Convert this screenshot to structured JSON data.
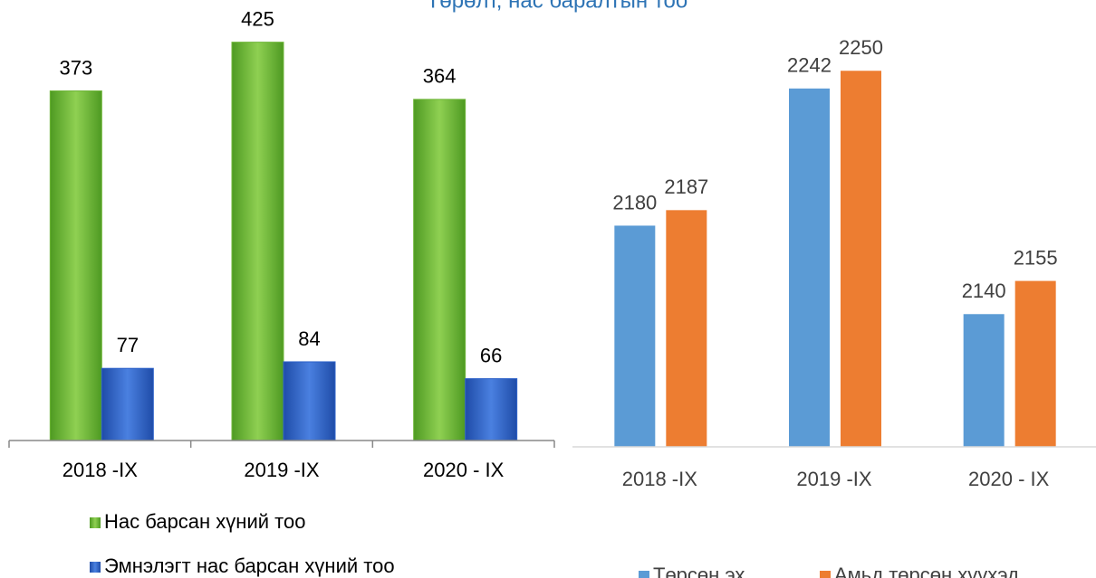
{
  "title": "Төрөлт, нас баралтын тоо",
  "chart_data": [
    {
      "type": "bar",
      "categories": [
        "2018  -IX",
        "2019  -IX",
        "2020  - IX"
      ],
      "series": [
        {
          "name": "Нас барсан хүний тоо",
          "color": "#6fb63a",
          "values": [
            373,
            425,
            364
          ]
        },
        {
          "name": "Эмнэлэгт нас барсан хүний тоо",
          "color": "#2f63c9",
          "values": [
            77,
            84,
            66
          ]
        }
      ],
      "ylim": [
        0,
        470
      ],
      "legend": "bottom"
    },
    {
      "type": "bar",
      "categories": [
        "2018 -IX",
        "2019  -IX",
        "2020  - IX"
      ],
      "series": [
        {
          "name": "Төрсөн эх",
          "color": "#5b9bd5",
          "values": [
            2180,
            2242,
            2140
          ]
        },
        {
          "name": "Амьд төрсөн хүүхэд",
          "color": "#ed7d31",
          "values": [
            2187,
            2250,
            2155
          ]
        }
      ],
      "ylim": [
        2080,
        2282
      ],
      "legend": "bottom"
    }
  ]
}
